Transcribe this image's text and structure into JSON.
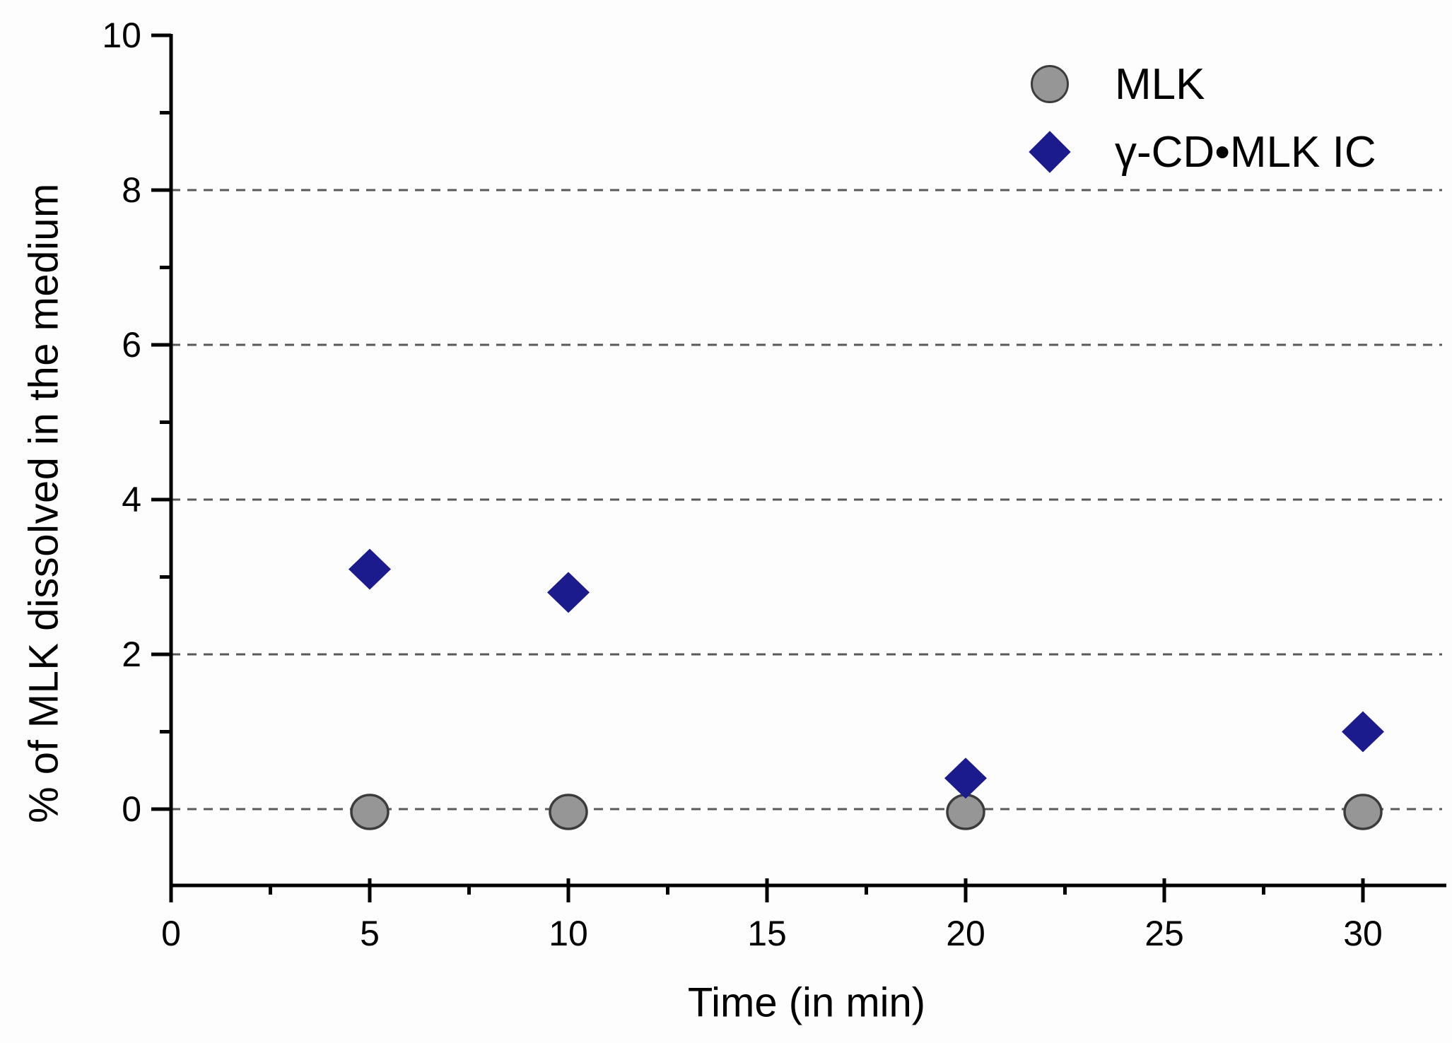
{
  "figure": {
    "background": "#FDFDFD",
    "description": "Scatter plot of percent MLK dissolved versus time"
  },
  "colors": {
    "mlk_fill": "#969696",
    "mlk_stroke": "#3C3C3C",
    "ic_fill": "#1B1B8E",
    "grid": "#595959",
    "axis": "#000000",
    "text": "#000000"
  },
  "legend": {
    "position": "top-right",
    "items": [
      {
        "label": "MLK",
        "marker": "circle"
      },
      {
        "label": "γ-CD•MLK IC",
        "marker": "diamond"
      }
    ]
  },
  "chart_data": {
    "type": "scatter",
    "title": "",
    "xlabel": "Time (in min)",
    "ylabel": "% of MLK dissolved in the medium",
    "xlim": [
      0,
      32
    ],
    "ylim": [
      -1,
      10
    ],
    "grid": "dashed-horizontal",
    "grid_y_values": [
      0,
      2,
      4,
      6,
      8
    ],
    "x_ticks": {
      "values": [
        0,
        5,
        10,
        15,
        20,
        25,
        30
      ],
      "labels": [
        "0",
        "5",
        "10",
        "15",
        "20",
        "25",
        "30"
      ]
    },
    "x_minor_ticks": [
      2.5,
      7.5,
      12.5,
      17.5,
      22.5,
      27.5
    ],
    "y_ticks": {
      "values": [
        0,
        2,
        4,
        6,
        8,
        10
      ],
      "labels": [
        "0",
        "2",
        "4",
        "6",
        "8",
        "10"
      ]
    },
    "y_minor_ticks": [
      1,
      3,
      5,
      7,
      9
    ],
    "legend_position": "top-right",
    "series": [
      {
        "name": "MLK",
        "marker": "circle",
        "color": "#969696",
        "x": [
          5,
          10,
          20,
          30
        ],
        "y": [
          0,
          0,
          0,
          0
        ]
      },
      {
        "name": "γ-CD•MLK IC",
        "marker": "diamond",
        "color": "#1B1B8E",
        "x": [
          5,
          10,
          20,
          30
        ],
        "y": [
          3.1,
          2.8,
          0.4,
          1.0
        ]
      }
    ]
  }
}
